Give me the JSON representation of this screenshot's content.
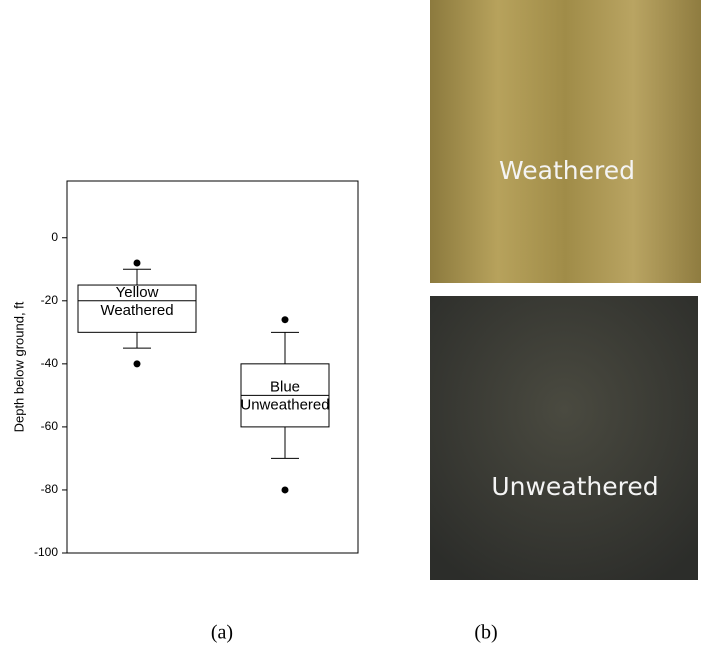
{
  "chart_data": {
    "type": "box",
    "y_label": "Depth below ground, ft",
    "ylim": [
      -100,
      18
    ],
    "yticks": [
      -100,
      -80,
      -60,
      -40,
      -20,
      0
    ],
    "boxes": [
      {
        "label_top": "Yellow",
        "label_bottom": "Weathered",
        "whisker_low": -35,
        "q1": -30,
        "median": -20,
        "q3": -15,
        "whisker_high": -10,
        "outliers": [
          -40,
          -8
        ]
      },
      {
        "label_top": "Blue",
        "label_bottom": "Unweathered",
        "whisker_low": -70,
        "q1": -60,
        "median": -50,
        "q3": -40,
        "whisker_high": -30,
        "outliers": [
          -80,
          -26
        ]
      }
    ]
  },
  "photos": [
    {
      "label": "Weathered"
    },
    {
      "label": "Unweathered"
    }
  ],
  "panel_labels": [
    "(a)",
    "(b)"
  ]
}
